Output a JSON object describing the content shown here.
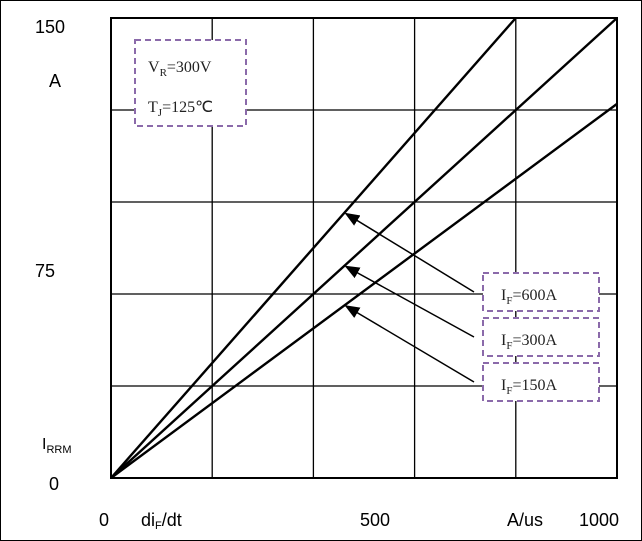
{
  "chart_data": {
    "type": "line",
    "x": [
      0,
      1000
    ],
    "xlim": [
      0,
      1000
    ],
    "ylim": [
      0,
      150
    ],
    "grid": true,
    "series": [
      {
        "name": "I_F=600A",
        "values": [
          0,
          150
        ],
        "x_end": 800
      },
      {
        "name": "I_F=300A",
        "values": [
          0,
          150
        ],
        "x_end": 1000
      },
      {
        "name": "I_F=150A",
        "values": [
          0,
          122
        ]
      }
    ],
    "y_ticks": [
      "150",
      "75",
      "0"
    ],
    "x_ticks": [
      "0",
      "500",
      "1000"
    ],
    "y_unit": "A",
    "y_label": "I_RRM",
    "x_label": "di_F/dt",
    "x_unit": "A/us",
    "conditions": {
      "vr": {
        "base": "V",
        "sub": "R",
        "rest": "=300V"
      },
      "tj": {
        "base": "T",
        "sub": "J",
        "rest": "=125℃"
      }
    },
    "labels": [
      {
        "base": "I",
        "sub": "F",
        "rest": "=600A"
      },
      {
        "base": "I",
        "sub": "F",
        "rest": "=300A"
      },
      {
        "base": "I",
        "sub": "F",
        "rest": "=150A"
      }
    ],
    "annotation_targets_x": [
      460,
      460,
      460
    ]
  }
}
